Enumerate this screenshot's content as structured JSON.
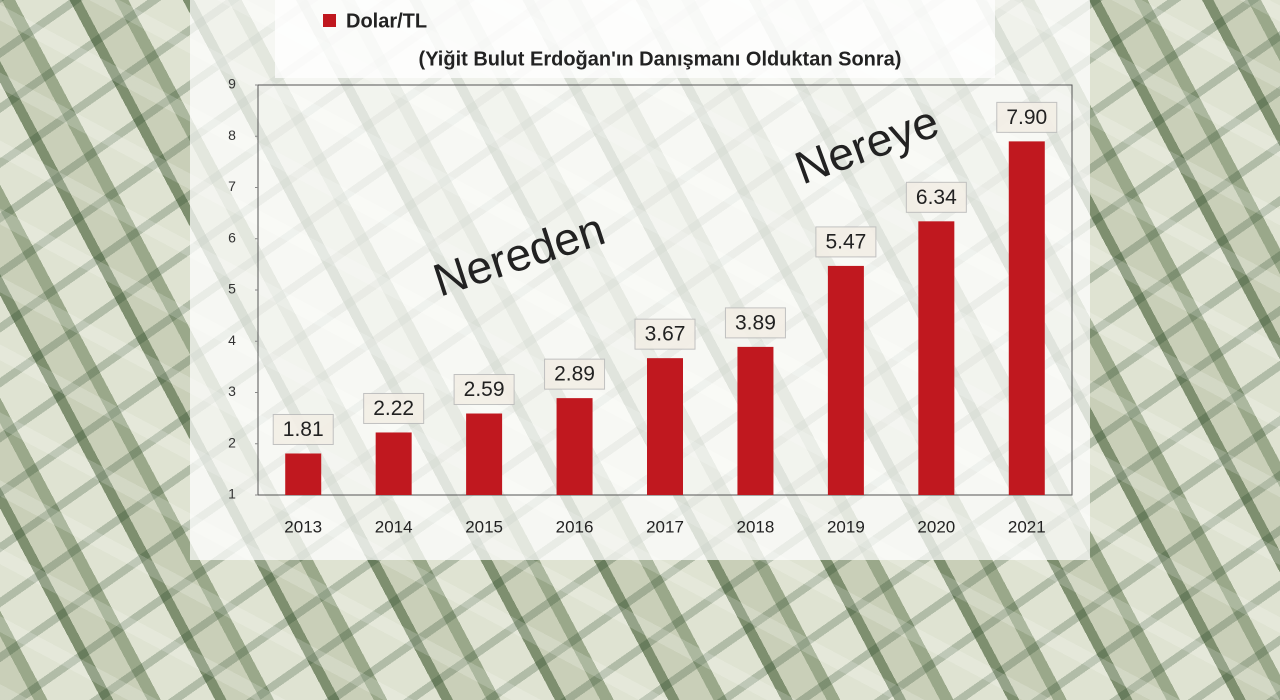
{
  "chart_data": {
    "type": "bar",
    "subtitle": "(Yiğit Bulut Erdoğan'ın Danışmanı Olduktan Sonra)",
    "categories": [
      "2013",
      "2014",
      "2015",
      "2016",
      "2017",
      "2018",
      "2019",
      "2020",
      "2021"
    ],
    "series": [
      {
        "name": "Dolar/TL",
        "color": "#c0181f",
        "values": [
          1.81,
          2.22,
          2.59,
          2.89,
          3.67,
          3.89,
          5.47,
          6.34,
          7.9
        ],
        "value_labels": [
          "1.81",
          "2.22",
          "2.59",
          "2.89",
          "3.67",
          "3.89",
          "5.47",
          "6.34",
          "7.90"
        ]
      }
    ],
    "ylim": [
      1,
      9
    ],
    "yticks": [
      1,
      2,
      3,
      4,
      5,
      6,
      7,
      8,
      9
    ],
    "annotations": [
      "Nereden",
      "Nereye"
    ]
  }
}
